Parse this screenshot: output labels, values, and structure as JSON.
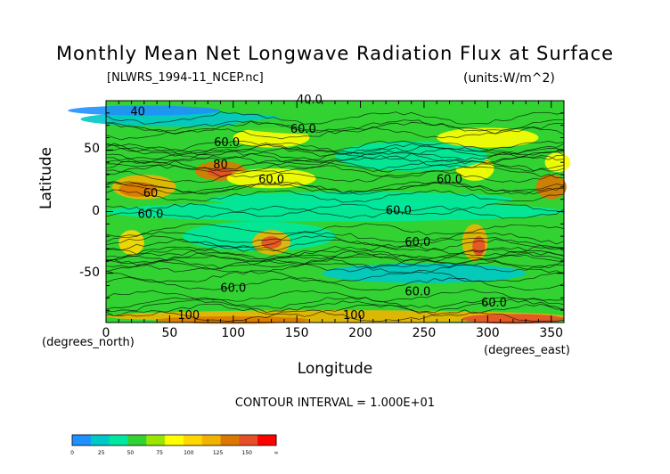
{
  "chart_data": {
    "type": "heatmap",
    "title": "Monthly Mean Net Longwave Radiation Flux at Surface",
    "file_label": "[NLWRS_1994-11_NCEP.nc]",
    "units_label": "(units:W/m^2)",
    "xlabel": "Longitude",
    "ylabel": "Latitude",
    "x_unit_label": "(degrees_east)",
    "y_unit_label": "(degrees_north)",
    "xlim": [
      0,
      360
    ],
    "ylim": [
      -90,
      90
    ],
    "x_ticks": [
      "0",
      "50",
      "100",
      "150",
      "200",
      "250",
      "300",
      "350"
    ],
    "y_ticks": [
      "50",
      "0",
      "-50"
    ],
    "contour_interval_text": "CONTOUR INTERVAL = 1.000E+01",
    "contour_labels": [
      {
        "text": "40.0",
        "x": 160,
        "y": 88
      },
      {
        "text": "40",
        "x": 25,
        "y": 78
      },
      {
        "text": "60.0",
        "x": 155,
        "y": 64
      },
      {
        "text": "60.0",
        "x": 95,
        "y": 53
      },
      {
        "text": "80",
        "x": 90,
        "y": 35
      },
      {
        "text": "60.0",
        "x": 130,
        "y": 23
      },
      {
        "text": "60",
        "x": 35,
        "y": 12
      },
      {
        "text": "60.0",
        "x": 270,
        "y": 23
      },
      {
        "text": "60.0",
        "x": 35,
        "y": -5
      },
      {
        "text": "60.0",
        "x": 230,
        "y": -2
      },
      {
        "text": "60.0",
        "x": 245,
        "y": -28
      },
      {
        "text": "60.0",
        "x": 245,
        "y": -68
      },
      {
        "text": "60.0",
        "x": 100,
        "y": -65
      },
      {
        "text": "60.0",
        "x": 305,
        "y": -77
      },
      {
        "text": "100",
        "x": 65,
        "y": -87
      },
      {
        "text": "100",
        "x": 195,
        "y": -87
      }
    ],
    "colorbar": {
      "levels": [
        "0",
        "25",
        "50",
        "75",
        "100",
        "125",
        "150",
        "∞"
      ],
      "colors": [
        "#1e90ff",
        "#00c8c8",
        "#00e8a0",
        "#32d232",
        "#9be600",
        "#ffff00",
        "#ffd700",
        "#f0b400",
        "#dc7800",
        "#e65028",
        "#ff0000"
      ]
    },
    "field_background": "#32d232"
  }
}
